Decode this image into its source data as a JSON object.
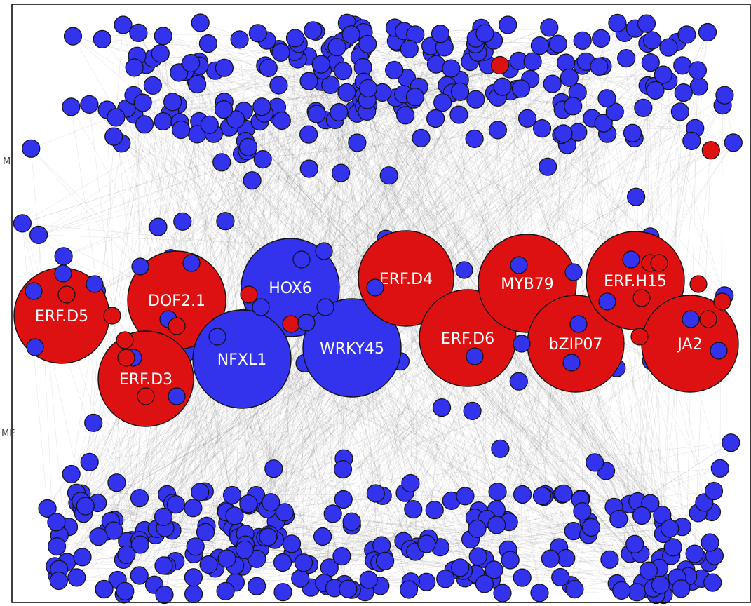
{
  "network": {
    "colors": {
      "blue_node": "#3333ee",
      "red_node": "#dd1111",
      "node_stroke": "#111111",
      "edge": "#555555",
      "frame": "#000000",
      "label_text": "#ffffff"
    },
    "hubs": [
      {
        "label": "ERF.D5",
        "color": "red"
      },
      {
        "label": "DOF2.1",
        "color": "red"
      },
      {
        "label": "ERF.D3",
        "color": "red"
      },
      {
        "label": "HOX6",
        "color": "blue"
      },
      {
        "label": "NFXL1",
        "color": "blue"
      },
      {
        "label": "WRKY45",
        "color": "blue"
      },
      {
        "label": "ERF.D4",
        "color": "red"
      },
      {
        "label": "ERF.D6",
        "color": "red"
      },
      {
        "label": "MYB79",
        "color": "red"
      },
      {
        "label": "bZIP07",
        "color": "red"
      },
      {
        "label": "ERF.H15",
        "color": "red"
      },
      {
        "label": "JA2",
        "color": "red"
      }
    ],
    "cut_labels": [
      "M",
      "ME"
    ]
  }
}
